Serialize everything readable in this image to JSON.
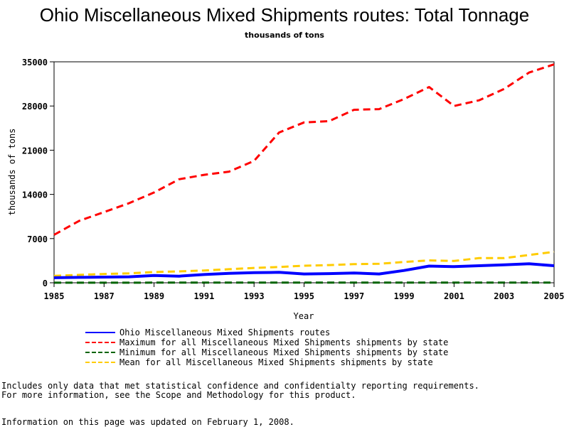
{
  "chart_data": {
    "type": "line",
    "title": "Ohio Miscellaneous Mixed Shipments routes: Total Tonnage",
    "subtitle": "thousands of tons",
    "xlabel": "Year",
    "ylabel": "thousands of tons",
    "xlim": [
      1985,
      2005
    ],
    "ylim": [
      0,
      35000
    ],
    "x_ticks": [
      "1985",
      "1987",
      "1989",
      "1991",
      "1993",
      "1995",
      "1997",
      "1999",
      "2001",
      "2003",
      "2005"
    ],
    "y_ticks": [
      "0",
      "7000",
      "14000",
      "21000",
      "28000",
      "35000"
    ],
    "grid": false,
    "legend_placement": "bottom",
    "x": [
      1985,
      1986,
      1987,
      1988,
      1989,
      1990,
      1991,
      1992,
      1993,
      1994,
      1995,
      1996,
      1997,
      1998,
      1999,
      2000,
      2001,
      2002,
      2003,
      2004,
      2005
    ],
    "series": [
      {
        "name": "Ohio Miscellaneous Mixed Shipments routes",
        "color": "#0000ff",
        "style": "solid",
        "values": [
          800,
          850,
          900,
          950,
          1150,
          1050,
          1300,
          1500,
          1600,
          1650,
          1400,
          1450,
          1550,
          1400,
          1950,
          2650,
          2550,
          2700,
          2850,
          3000,
          2700
        ]
      },
      {
        "name": "Maximum for all Miscellaneous Mixed Shipments shipments by state",
        "color": "#ff0000",
        "style": "dashed",
        "values": [
          7600,
          9800,
          11200,
          12600,
          14300,
          16400,
          17100,
          17600,
          19300,
          23800,
          25400,
          25600,
          27400,
          27500,
          29100,
          31000,
          28000,
          28900,
          30700,
          33300,
          34600
        ]
      },
      {
        "name": "Minimum for all Miscellaneous Mixed Shipments shipments by state",
        "color": "#006400",
        "style": "dashed",
        "values": [
          10,
          10,
          10,
          10,
          20,
          20,
          20,
          20,
          20,
          20,
          20,
          20,
          20,
          20,
          20,
          20,
          20,
          20,
          20,
          20,
          20
        ]
      },
      {
        "name": "Mean for all Miscellaneous Mixed Shipments shipments by state",
        "color": "#ffcc00",
        "style": "dashed",
        "values": [
          1100,
          1250,
          1400,
          1500,
          1700,
          1800,
          1950,
          2150,
          2350,
          2500,
          2700,
          2800,
          2950,
          3000,
          3300,
          3550,
          3450,
          3900,
          3900,
          4400,
          4900
        ]
      }
    ]
  },
  "footnotes": {
    "line1": "Includes only data that met statistical confidence and confidentialty reporting requirements.",
    "line2": "For more information, see the Scope and Methodology for this product.",
    "updated": "Information on this page was updated on February 1, 2008."
  }
}
